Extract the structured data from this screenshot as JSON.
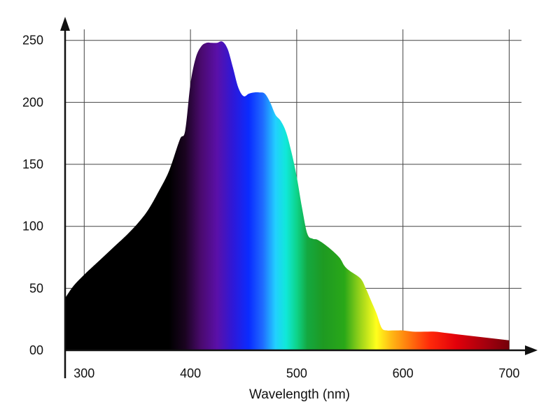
{
  "chart_data": {
    "type": "area",
    "title": "",
    "xlabel": "Wavelength (nm)",
    "ylabel": "",
    "xlim": [
      282,
      705
    ],
    "ylim": [
      0,
      260
    ],
    "grid": true,
    "legend": "none",
    "x_ticks": [
      {
        "value": 300,
        "label": "300"
      },
      {
        "value": 400,
        "label": "400"
      },
      {
        "value": 500,
        "label": "500"
      },
      {
        "value": 600,
        "label": "600"
      },
      {
        "value": 700,
        "label": "700"
      }
    ],
    "y_ticks": [
      {
        "value": 0,
        "label": "00"
      },
      {
        "value": 50,
        "label": "50"
      },
      {
        "value": 100,
        "label": "100"
      },
      {
        "value": 150,
        "label": "150"
      },
      {
        "value": 200,
        "label": "200"
      },
      {
        "value": 250,
        "label": "250"
      }
    ],
    "series": [
      {
        "x": [
          282,
          290,
          300,
          310,
          320,
          330,
          340,
          350,
          360,
          370,
          380,
          390,
          395,
          400,
          405,
          410,
          415,
          420,
          425,
          430,
          435,
          440,
          445,
          450,
          455,
          460,
          465,
          470,
          475,
          480,
          485,
          490,
          495,
          500,
          505,
          510,
          515,
          520,
          530,
          540,
          545,
          550,
          560,
          565,
          570,
          575,
          580,
          585,
          590,
          595,
          600,
          610,
          620,
          630,
          640,
          650,
          660,
          670,
          680,
          690,
          700
        ],
        "y": [
          42,
          52,
          61,
          69,
          77,
          85,
          93,
          102,
          113,
          128,
          145,
          170,
          177,
          215,
          236,
          245,
          248,
          248,
          248,
          249,
          243,
          228,
          212,
          205,
          207,
          208,
          208,
          207,
          200,
          190,
          185,
          176,
          160,
          140,
          115,
          94,
          90,
          89,
          83,
          75,
          68,
          64,
          58,
          50,
          40,
          30,
          18,
          16,
          16,
          16,
          16,
          15,
          15,
          15,
          14,
          13,
          12,
          11,
          10,
          9,
          8
        ]
      }
    ],
    "gradient_stops": [
      {
        "nm": 380,
        "color": "#000000"
      },
      {
        "nm": 395,
        "color": "#1a0420"
      },
      {
        "nm": 410,
        "color": "#4a0a6e"
      },
      {
        "nm": 425,
        "color": "#5a10a8"
      },
      {
        "nm": 440,
        "color": "#2e18d8"
      },
      {
        "nm": 455,
        "color": "#0a2cff"
      },
      {
        "nm": 468,
        "color": "#1f6bff"
      },
      {
        "nm": 480,
        "color": "#22d0ff"
      },
      {
        "nm": 490,
        "color": "#10e8d8"
      },
      {
        "nm": 500,
        "color": "#0ed48a"
      },
      {
        "nm": 510,
        "color": "#14a840"
      },
      {
        "nm": 525,
        "color": "#1e9a22"
      },
      {
        "nm": 545,
        "color": "#2aa818"
      },
      {
        "nm": 560,
        "color": "#9cd41a"
      },
      {
        "nm": 575,
        "color": "#ffff1c"
      },
      {
        "nm": 590,
        "color": "#ffb414"
      },
      {
        "nm": 605,
        "color": "#ff7a0e"
      },
      {
        "nm": 625,
        "color": "#ff2a0a"
      },
      {
        "nm": 650,
        "color": "#e2000a"
      },
      {
        "nm": 680,
        "color": "#a0000e"
      },
      {
        "nm": 705,
        "color": "#6a0008"
      }
    ]
  }
}
